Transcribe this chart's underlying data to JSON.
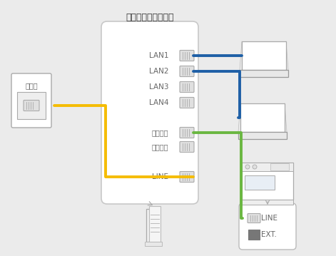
{
  "bg_color": "#ebebeb",
  "title": "ひかり電話対応機器",
  "wall_label": "光回線",
  "lan_labels": [
    "LAN1",
    "LAN2",
    "LAN3",
    "LAN4"
  ],
  "phone_label1": "電話機１",
  "phone_label2": "電話機２",
  "line_label": "LINE",
  "line_text": "LINE",
  "ext_text": "EXT.",
  "blue_color": "#1e5fa6",
  "green_color": "#6ab741",
  "yellow_color": "#f5bc00",
  "box_edge": "#c8c8c8",
  "port_edge": "#aaaaaa",
  "port_face": "#e0e0e0",
  "device_edge": "#999999",
  "device_face": "#f5f5f5",
  "text_color": "#666666",
  "white": "#ffffff"
}
